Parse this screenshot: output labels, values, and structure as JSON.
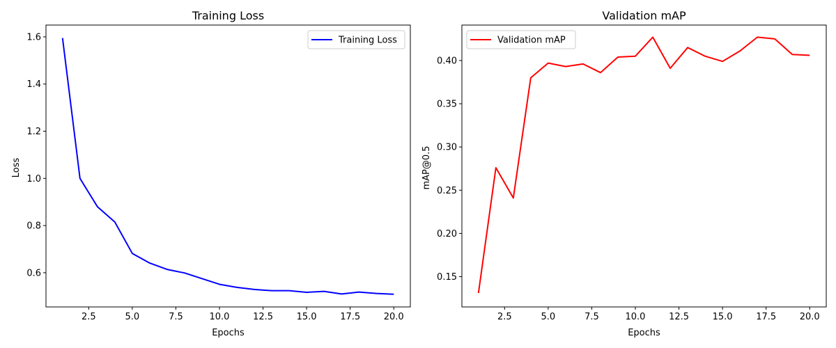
{
  "chart_data": [
    {
      "type": "line",
      "title": "Training Loss",
      "xlabel": "Epochs",
      "ylabel": "Loss",
      "xlim": [
        0.05,
        20.95
      ],
      "ylim": [
        0.455,
        1.65
      ],
      "xticks": [
        2.5,
        5.0,
        7.5,
        10.0,
        12.5,
        15.0,
        17.5,
        20.0
      ],
      "xtick_labels": [
        "2.5",
        "5.0",
        "7.5",
        "10.0",
        "12.5",
        "15.0",
        "17.5",
        "20.0"
      ],
      "yticks": [
        0.6,
        0.8,
        1.0,
        1.2,
        1.4,
        1.6
      ],
      "ytick_labels": [
        "0.6",
        "0.8",
        "1.0",
        "1.2",
        "1.4",
        "1.6"
      ],
      "grid": false,
      "legend": "upper-right",
      "series": [
        {
          "name": "Training Loss",
          "color": "#0000ff",
          "x": [
            1,
            2,
            3,
            4,
            5,
            6,
            7,
            8,
            9,
            10,
            11,
            12,
            13,
            14,
            15,
            16,
            17,
            18,
            19,
            20
          ],
          "y": [
            1.595,
            1.0,
            0.88,
            0.815,
            0.682,
            0.641,
            0.614,
            0.599,
            0.575,
            0.551,
            0.538,
            0.529,
            0.524,
            0.524,
            0.517,
            0.521,
            0.51,
            0.518,
            0.512,
            0.509
          ]
        }
      ]
    },
    {
      "type": "line",
      "title": "Validation mAP",
      "xlabel": "Epochs",
      "ylabel": "mAP@0.5",
      "xlim": [
        0.05,
        20.95
      ],
      "ylim": [
        0.115,
        0.441
      ],
      "xticks": [
        2.5,
        5.0,
        7.5,
        10.0,
        12.5,
        15.0,
        17.5,
        20.0
      ],
      "xtick_labels": [
        "2.5",
        "5.0",
        "7.5",
        "10.0",
        "12.5",
        "15.0",
        "17.5",
        "20.0"
      ],
      "yticks": [
        0.15,
        0.2,
        0.25,
        0.3,
        0.35,
        0.4
      ],
      "ytick_labels": [
        "0.15",
        "0.20",
        "0.25",
        "0.30",
        "0.35",
        "0.40"
      ],
      "grid": false,
      "legend": "upper-left",
      "series": [
        {
          "name": "Validation mAP",
          "color": "#ff0000",
          "x": [
            1,
            2,
            3,
            4,
            5,
            6,
            7,
            8,
            9,
            10,
            11,
            12,
            13,
            14,
            15,
            16,
            17,
            18,
            19,
            20
          ],
          "y": [
            0.131,
            0.276,
            0.241,
            0.38,
            0.397,
            0.393,
            0.396,
            0.386,
            0.404,
            0.405,
            0.427,
            0.391,
            0.415,
            0.405,
            0.399,
            0.411,
            0.427,
            0.425,
            0.407,
            0.406
          ]
        }
      ]
    }
  ]
}
